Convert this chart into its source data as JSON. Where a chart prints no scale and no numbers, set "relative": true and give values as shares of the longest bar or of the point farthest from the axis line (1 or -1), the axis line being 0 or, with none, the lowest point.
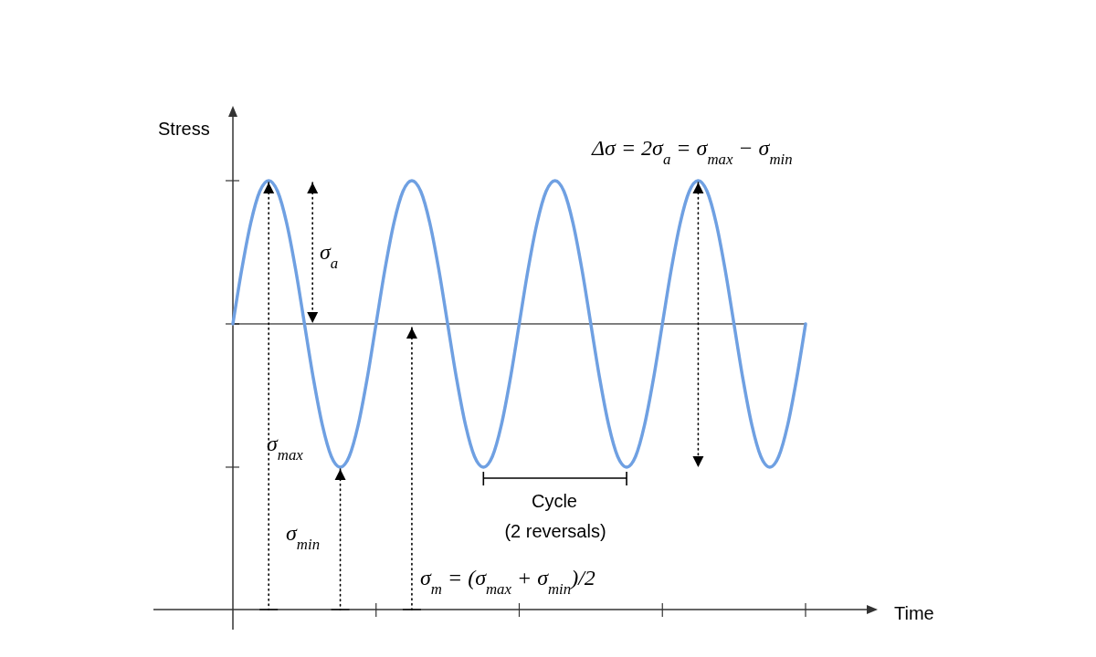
{
  "chart_data": {
    "type": "line",
    "relative": true,
    "xlabel": "Time",
    "ylabel": "Stress",
    "categories": [
      null,
      null,
      null,
      null,
      null,
      null,
      null,
      null,
      null,
      null,
      null,
      null,
      null,
      null,
      null,
      null,
      null,
      null,
      null,
      null,
      null,
      null,
      null,
      null,
      null,
      null,
      null,
      null,
      null,
      null,
      null,
      null,
      null,
      null,
      null,
      null,
      null,
      null,
      null,
      null,
      null,
      null,
      null,
      null,
      null,
      null,
      null,
      null,
      null,
      null,
      null,
      null,
      null,
      null,
      null,
      null,
      null,
      null,
      null,
      null,
      null,
      null,
      null,
      null,
      null
    ],
    "series": [
      {
        "color": "#6fa0e2",
        "values": [
          0.666,
          0.794,
          0.902,
          0.975,
          1,
          0.975,
          0.902,
          0.794,
          0.666,
          0.538,
          0.43,
          0.357,
          0.332,
          0.357,
          0.43,
          0.538,
          0.666,
          0.794,
          0.902,
          0.975,
          1,
          0.975,
          0.902,
          0.794,
          0.666,
          0.538,
          0.43,
          0.357,
          0.332,
          0.357,
          0.43,
          0.538,
          0.666,
          0.794,
          0.902,
          0.975,
          1,
          0.975,
          0.902,
          0.794,
          0.666,
          0.538,
          0.43,
          0.357,
          0.332,
          0.357,
          0.43,
          0.538,
          0.666,
          0.794,
          0.902,
          0.975,
          1,
          0.975,
          0.902,
          0.794,
          0.666,
          0.538,
          0.43,
          0.357,
          0.332,
          0.357,
          0.43,
          0.538,
          0.666
        ]
      }
    ],
    "ref_lines": [
      {
        "axis": "y",
        "value": 0.666,
        "color": "#000000"
      }
    ],
    "annotations": [
      "Δσ = 2σ$_{a}$ = σ$_{max}$ − σ$_{min}$",
      "σ$_{a}$",
      "σ$_{max}$",
      "σ$_{min}$",
      "σ$_{m}$ = (σ$_{max}$ + σ$_{min}$)/2",
      "Cycle",
      "(2 reversals)"
    ]
  }
}
